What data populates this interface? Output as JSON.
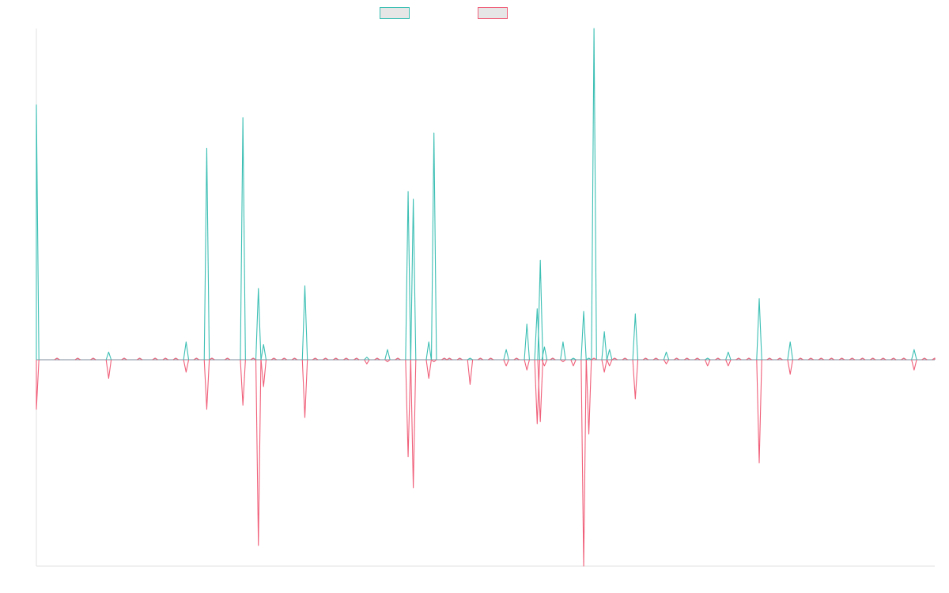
{
  "chart_data": {
    "type": "line",
    "title": "",
    "xlabel": "",
    "ylabel": "",
    "grid": false,
    "legend_position": "top-center",
    "ylim": [
      -1,
      1.25
    ],
    "x_count": 88,
    "series": [
      {
        "name": "",
        "color": "#3cbfb4",
        "role": "positive",
        "values": [
          1.0,
          0,
          0,
          0,
          0.03,
          0,
          0,
          0,
          0,
          0,
          0.07,
          0,
          0.83,
          0,
          0,
          0.95,
          0,
          0.28,
          0.06,
          0,
          0,
          0,
          0.29,
          0,
          0,
          0,
          0,
          0,
          0.01,
          0,
          0.04,
          0,
          0.66,
          0.63,
          0.07,
          0.89,
          0,
          0,
          0,
          0,
          0,
          0,
          0.04,
          0,
          0.14,
          0.2,
          0.39,
          0.05,
          0,
          0.07,
          0,
          0.19,
          0,
          1.3,
          0.11,
          0.04,
          0,
          0,
          0.18,
          0,
          0,
          0.03,
          0,
          0,
          0,
          0,
          0,
          0.03,
          0,
          0,
          0.24,
          0,
          0,
          0.07,
          0,
          0,
          0,
          0,
          0,
          0,
          0,
          0,
          0,
          0,
          0,
          0.04,
          0,
          0
        ],
        "x_positions": [
          0,
          2,
          4,
          5.5,
          7,
          8.5,
          10,
          11.5,
          12.5,
          13.5,
          14.5,
          15.5,
          16.5,
          17,
          18.5,
          20,
          21,
          21.5,
          22,
          23,
          24,
          25,
          26,
          27,
          28,
          29,
          30,
          31,
          32,
          33,
          34,
          35,
          36,
          36.5,
          38,
          38.5,
          39.5,
          40,
          41,
          42,
          43,
          44,
          45.5,
          46.5,
          47.5,
          48.5,
          48.8,
          49.2,
          50,
          51,
          52,
          53,
          53.5,
          54,
          55,
          55.5,
          56,
          57,
          58,
          59,
          60,
          61,
          62,
          63,
          64,
          65,
          66,
          67,
          68,
          69,
          70,
          71,
          72,
          73,
          74,
          75,
          76,
          77,
          78,
          79,
          80,
          81,
          82,
          83,
          84,
          85,
          86,
          87
        ]
      },
      {
        "name": "",
        "color": "#f0607a",
        "role": "negative",
        "values": [
          -0.24,
          0,
          0,
          0,
          -0.09,
          0,
          0,
          0,
          0,
          0,
          -0.06,
          0,
          -0.24,
          0,
          0,
          -0.22,
          0,
          -0.9,
          -0.13,
          0,
          0,
          0,
          -0.28,
          0,
          0,
          0,
          0,
          0,
          -0.02,
          0,
          -0.01,
          0,
          -0.47,
          -0.62,
          -0.09,
          -0.01,
          0,
          0,
          0,
          -0.12,
          0,
          0,
          -0.03,
          0,
          -0.05,
          -0.31,
          -0.3,
          -0.03,
          0,
          -0.01,
          -0.03,
          -1.0,
          -0.36,
          0,
          -0.06,
          -0.03,
          0,
          0,
          -0.19,
          0,
          0,
          -0.02,
          0,
          0,
          0,
          -0.03,
          0,
          -0.03,
          0,
          0,
          -0.5,
          0,
          0,
          -0.07,
          0,
          0,
          0,
          0,
          0,
          0,
          0,
          0,
          0,
          0,
          0,
          -0.05,
          0,
          0
        ],
        "x_positions": [
          0,
          2,
          4,
          5.5,
          7,
          8.5,
          10,
          11.5,
          12.5,
          13.5,
          14.5,
          15.5,
          16.5,
          17,
          18.5,
          20,
          21,
          21.5,
          22,
          23,
          24,
          25,
          26,
          27,
          28,
          29,
          30,
          31,
          32,
          33,
          34,
          35,
          36,
          36.5,
          38,
          38.5,
          39.5,
          40,
          41,
          42,
          43,
          44,
          45.5,
          46.5,
          47.5,
          48.5,
          48.8,
          49.2,
          50,
          51,
          52,
          53,
          53.5,
          54,
          55,
          55.5,
          56,
          57,
          58,
          59,
          60,
          61,
          62,
          63,
          64,
          65,
          66,
          67,
          68,
          69,
          70,
          71,
          72,
          73,
          74,
          75,
          76,
          77,
          78,
          79,
          80,
          81,
          82,
          83,
          84,
          85,
          86,
          87
        ]
      }
    ],
    "x_range": [
      0,
      87
    ]
  }
}
